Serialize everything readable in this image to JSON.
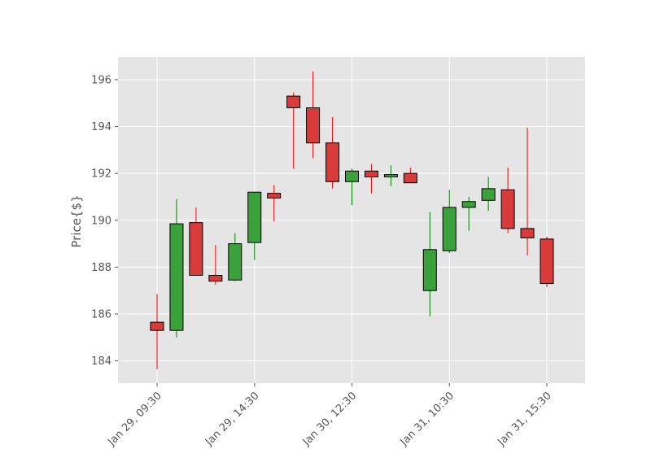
{
  "chart_data": {
    "type": "candlestick",
    "ylabel": "Price{$}",
    "xlabel": "",
    "ylim": [
      183.05,
      196.97
    ],
    "yticks": [
      184,
      186,
      188,
      190,
      192,
      194,
      196
    ],
    "xtick_labels": [
      {
        "index": 0,
        "label": "Jan 29, 09:30"
      },
      {
        "index": 5,
        "label": "Jan 29, 14:30"
      },
      {
        "index": 10,
        "label": "Jan 30, 12:30"
      },
      {
        "index": 15,
        "label": "Jan 31, 10:30"
      },
      {
        "index": 20,
        "label": "Jan 31, 15:30"
      }
    ],
    "grid": true,
    "colors": {
      "up": "#3ba23b",
      "down": "#d93a3a",
      "up_wick": "#008000",
      "down_wick": "#ff0000",
      "background": "#e5e5e5",
      "grid": "#ffffff",
      "text": "#555555"
    },
    "candles": [
      {
        "open": 185.65,
        "high": 186.85,
        "low": 183.65,
        "close": 185.3
      },
      {
        "open": 185.3,
        "high": 190.9,
        "low": 185.0,
        "close": 189.85
      },
      {
        "open": 189.9,
        "high": 190.55,
        "low": 187.65,
        "close": 187.65
      },
      {
        "open": 187.65,
        "high": 188.95,
        "low": 187.25,
        "close": 187.4
      },
      {
        "open": 187.45,
        "high": 189.45,
        "low": 187.4,
        "close": 189.0
      },
      {
        "open": 189.05,
        "high": 191.2,
        "low": 188.3,
        "close": 191.2
      },
      {
        "open": 191.15,
        "high": 191.5,
        "low": 189.95,
        "close": 190.95
      },
      {
        "open": 195.3,
        "high": 195.45,
        "low": 192.2,
        "close": 194.8
      },
      {
        "open": 194.8,
        "high": 196.35,
        "low": 192.65,
        "close": 193.3
      },
      {
        "open": 193.3,
        "high": 194.4,
        "low": 191.35,
        "close": 191.65
      },
      {
        "open": 191.65,
        "high": 192.2,
        "low": 190.65,
        "close": 192.1
      },
      {
        "open": 192.1,
        "high": 192.4,
        "low": 191.15,
        "close": 191.85
      },
      {
        "open": 191.85,
        "high": 192.35,
        "low": 191.45,
        "close": 191.95
      },
      {
        "open": 192.0,
        "high": 192.25,
        "low": 191.6,
        "close": 191.6
      },
      {
        "open": 187.0,
        "high": 190.35,
        "low": 185.9,
        "close": 188.75
      },
      {
        "open": 188.7,
        "high": 191.3,
        "low": 188.6,
        "close": 190.55
      },
      {
        "open": 190.55,
        "high": 191.0,
        "low": 189.55,
        "close": 190.8
      },
      {
        "open": 190.85,
        "high": 191.85,
        "low": 190.4,
        "close": 191.35
      },
      {
        "open": 191.3,
        "high": 192.25,
        "low": 189.45,
        "close": 189.65
      },
      {
        "open": 189.65,
        "high": 193.95,
        "low": 188.5,
        "close": 189.25
      },
      {
        "open": 189.2,
        "high": 189.3,
        "low": 187.15,
        "close": 187.3
      }
    ]
  }
}
